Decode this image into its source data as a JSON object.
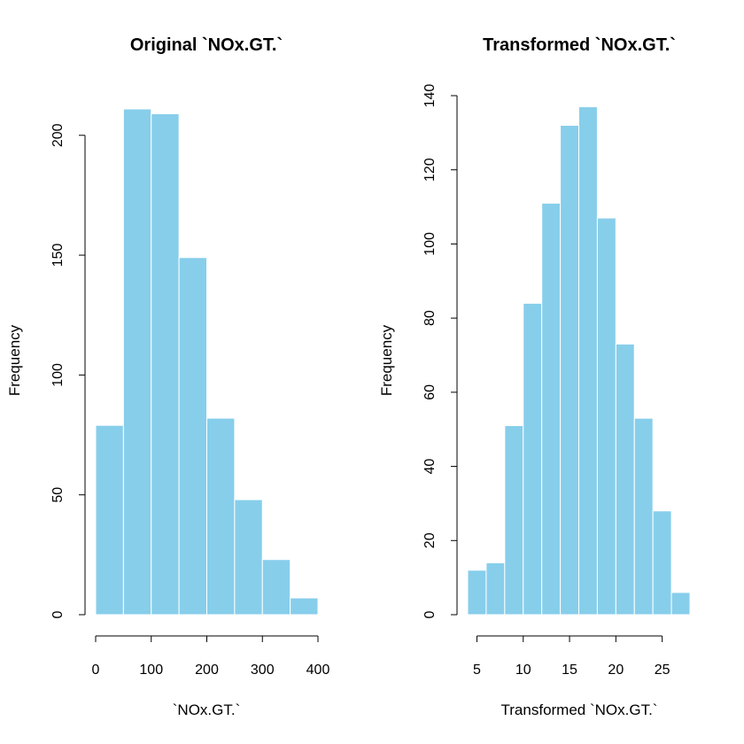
{
  "chart_data": [
    {
      "type": "bar",
      "title": "Original `NOx.GT.`",
      "xlabel": "`NOx.GT.`",
      "ylabel": "Frequency",
      "bin_edges": [
        0,
        50,
        100,
        150,
        200,
        250,
        300,
        350,
        400
      ],
      "values": [
        79,
        211,
        209,
        149,
        82,
        48,
        23,
        7
      ],
      "xlim": [
        0,
        400
      ],
      "ylim": [
        0,
        211
      ],
      "x_ticks": [
        0,
        100,
        200,
        300,
        400
      ],
      "y_ticks": [
        0,
        50,
        100,
        150,
        200
      ],
      "bar_color": "#87CEEB",
      "grid": false
    },
    {
      "type": "bar",
      "title": "Transformed `NOx.GT.`",
      "xlabel": "Transformed `NOx.GT.`",
      "ylabel": "Frequency",
      "bin_edges": [
        4,
        6,
        8,
        10,
        12,
        14,
        16,
        18,
        20,
        22,
        24,
        26,
        28
      ],
      "values": [
        12,
        14,
        51,
        84,
        111,
        132,
        137,
        107,
        73,
        53,
        28,
        6
      ],
      "xlim": [
        4,
        28
      ],
      "ylim": [
        0,
        140
      ],
      "x_ticks": [
        5,
        10,
        15,
        20,
        25
      ],
      "y_ticks": [
        0,
        20,
        40,
        60,
        80,
        100,
        120,
        140
      ],
      "bar_color": "#87CEEB",
      "grid": false
    }
  ]
}
